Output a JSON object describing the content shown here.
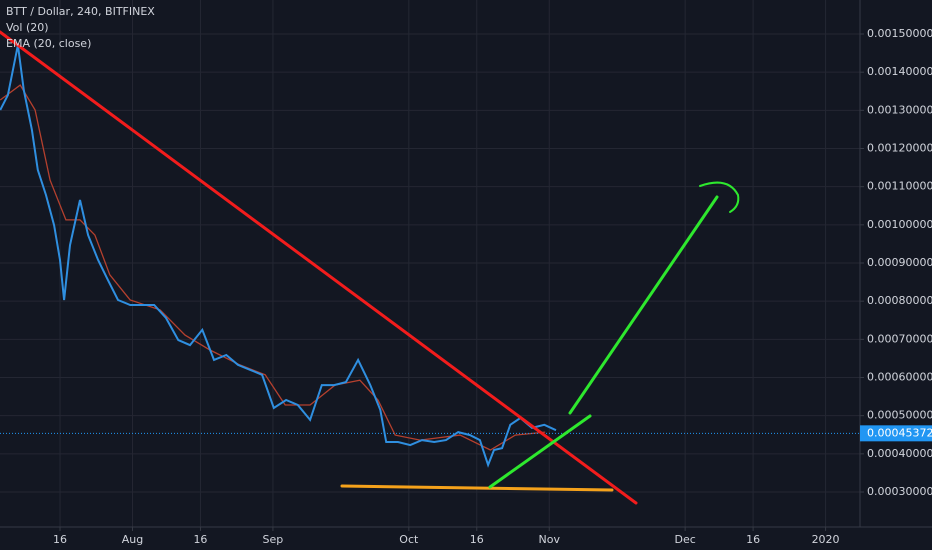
{
  "chart_data": {
    "type": "line",
    "title": "BTT / Dollar, 240, BITFINEX",
    "indicators": [
      "Vol (20)",
      "EMA (20, close)"
    ],
    "series": [
      {
        "name": "BTT / Dollar",
        "color": "#2f8fe0",
        "x": [
          1.8,
          3.5,
          5.7,
          7.0,
          8.8,
          10.1,
          11.9,
          13.7,
          15.0,
          15.9,
          17.2,
          19.4,
          21.2,
          23.4,
          25.6,
          27.8,
          30.5,
          33.1,
          35.8,
          38.4,
          41.1,
          43.7,
          46.4,
          49.0,
          51.7,
          54.3,
          57.0,
          59.6,
          62.2,
          64.9,
          67.5,
          70.2,
          72.8,
          75.5,
          78.1,
          80.8,
          83.5,
          85.7,
          87.0,
          89.6,
          92.3,
          94.9,
          97.6,
          100.2,
          102.9,
          105.5,
          107.7,
          109.5,
          110.8,
          112.6,
          114.4,
          116.6,
          119.2,
          121.9,
          124.5
        ],
        "values": [
          0.001301,
          0.00134,
          0.001471,
          0.001353,
          0.001249,
          0.001144,
          0.001078,
          0.000999,
          0.000908,
          0.000803,
          0.000947,
          0.001065,
          0.000973,
          0.000908,
          0.000855,
          0.000803,
          0.00079,
          0.00079,
          0.00079,
          0.000756,
          0.000698,
          0.000685,
          0.000725,
          0.000646,
          0.000659,
          0.000633,
          0.00062,
          0.000607,
          0.00052,
          0.000541,
          0.000528,
          0.000489,
          0.00058,
          0.00058,
          0.000588,
          0.000646,
          0.00058,
          0.000515,
          0.000431,
          0.000431,
          0.000423,
          0.000436,
          0.000431,
          0.000436,
          0.000457,
          0.000449,
          0.000436,
          0.000371,
          0.00041,
          0.000415,
          0.000476,
          0.000494,
          0.000468,
          0.000476,
          0.000462
        ]
      },
      {
        "name": "EMA (20, close)",
        "color": "#b5402e",
        "x": [
          1.8,
          6.2,
          9.5,
          12.8,
          16.3,
          19.4,
          22.7,
          26.0,
          30.5,
          37.1,
          42.6,
          48.1,
          54.7,
          60.3,
          64.7,
          70.2,
          75.7,
          81.2,
          85.2,
          89.0,
          94.5,
          103.3,
          110.0,
          115.5,
          122.1
        ],
        "values": [
          0.001327,
          0.001366,
          0.001301,
          0.001117,
          0.001013,
          0.001013,
          0.000973,
          0.000869,
          0.000803,
          0.000777,
          0.000711,
          0.000672,
          0.000633,
          0.000607,
          0.000528,
          0.000528,
          0.00058,
          0.000593,
          0.000541,
          0.000449,
          0.000436,
          0.000449,
          0.00041,
          0.000449,
          0.000457
        ]
      }
    ],
    "last_price": 0.00045372,
    "xlim": [
      1.75,
      191.6
    ],
    "xticks": [
      {
        "value": 15,
        "label": "16"
      },
      {
        "value": 31,
        "label": "Aug"
      },
      {
        "value": 46,
        "label": "16"
      },
      {
        "value": 62,
        "label": "Sep"
      },
      {
        "value": 92,
        "label": "Oct"
      },
      {
        "value": 107,
        "label": "16"
      },
      {
        "value": 123,
        "label": "Nov"
      },
      {
        "value": 153,
        "label": "Dec"
      },
      {
        "value": 168,
        "label": "16"
      },
      {
        "value": 184,
        "label": "2020"
      }
    ],
    "ylim": [
      0.0002083,
      0.0015891
    ],
    "yticks": [
      {
        "value": 0.0003,
        "label": "0.00030000"
      },
      {
        "value": 0.0004,
        "label": "0.00040000"
      },
      {
        "value": 0.0005,
        "label": "0.00050000"
      },
      {
        "value": 0.0006,
        "label": "0.00060000"
      },
      {
        "value": 0.0007,
        "label": "0.00070000"
      },
      {
        "value": 0.0008,
        "label": "0.00080000"
      },
      {
        "value": 0.0009,
        "label": "0.00090000"
      },
      {
        "value": 0.001,
        "label": "0.00100000"
      },
      {
        "value": 0.0011,
        "label": "0.00110000"
      },
      {
        "value": 0.0012,
        "label": "0.00120000"
      },
      {
        "value": 0.0013,
        "label": "0.00130000"
      },
      {
        "value": 0.0014,
        "label": "0.00140000"
      },
      {
        "value": 0.0015,
        "label": "0.00150000"
      }
    ],
    "grid": true
  }
}
